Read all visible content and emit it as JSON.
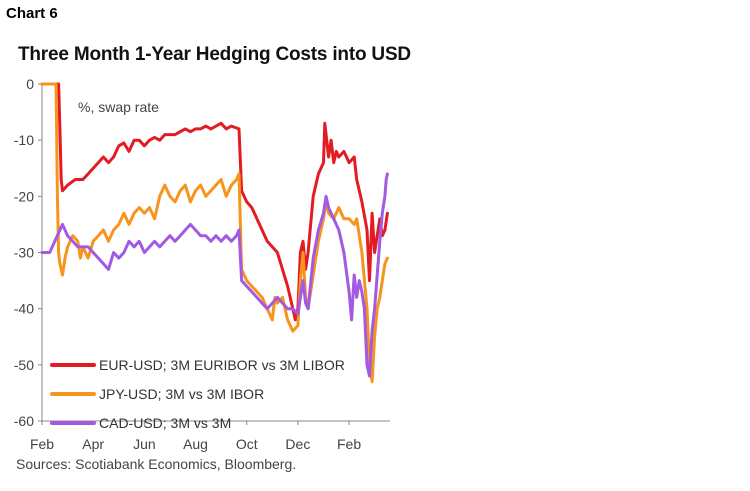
{
  "chart_label": "Chart 6",
  "source": "Sources: Scotiabank Economics, Bloomberg.",
  "chart_data": {
    "type": "line",
    "title": "Three Month 1-Year Hedging Costs into USD",
    "unit_label": "%, swap rate",
    "xlabel": "",
    "ylabel": "",
    "ylim": [
      -60,
      0
    ],
    "yticks": [
      0,
      -10,
      -20,
      -30,
      -40,
      -50,
      -60
    ],
    "xticks": [
      {
        "label": "Feb",
        "t": 0
      },
      {
        "label": "Apr",
        "t": 2
      },
      {
        "label": "Jun",
        "t": 4
      },
      {
        "label": "Aug",
        "t": 6
      },
      {
        "label": "Oct",
        "t": 8
      },
      {
        "label": "Dec",
        "t": 10
      },
      {
        "label": "Feb",
        "t": 12
      }
    ],
    "xlim": [
      0,
      13.6
    ],
    "grid": false,
    "legend_position": "bottom-left",
    "series": [
      {
        "name": "EUR-USD; 3M EURIBOR vs 3M LIBOR",
        "color": "#E31B23",
        "points": [
          [
            0,
            0
          ],
          [
            0.65,
            0
          ],
          [
            0.7,
            -8
          ],
          [
            0.75,
            -17
          ],
          [
            0.8,
            -19
          ],
          [
            1.0,
            -18
          ],
          [
            1.3,
            -17
          ],
          [
            1.6,
            -17
          ],
          [
            1.8,
            -16
          ],
          [
            2.0,
            -15
          ],
          [
            2.2,
            -14
          ],
          [
            2.4,
            -13
          ],
          [
            2.6,
            -14
          ],
          [
            2.8,
            -13
          ],
          [
            3.0,
            -11
          ],
          [
            3.2,
            -10.5
          ],
          [
            3.4,
            -12
          ],
          [
            3.6,
            -10
          ],
          [
            3.8,
            -10
          ],
          [
            4.0,
            -11
          ],
          [
            4.2,
            -10
          ],
          [
            4.4,
            -9.5
          ],
          [
            4.6,
            -10
          ],
          [
            4.8,
            -9
          ],
          [
            5.0,
            -9
          ],
          [
            5.2,
            -9
          ],
          [
            5.4,
            -8.5
          ],
          [
            5.6,
            -8
          ],
          [
            5.8,
            -8.5
          ],
          [
            6.0,
            -8
          ],
          [
            6.2,
            -8
          ],
          [
            6.4,
            -7.5
          ],
          [
            6.6,
            -8
          ],
          [
            6.8,
            -7.5
          ],
          [
            7.0,
            -7
          ],
          [
            7.2,
            -8
          ],
          [
            7.4,
            -7.5
          ],
          [
            7.7,
            -8
          ],
          [
            7.8,
            -19
          ],
          [
            8.0,
            -21
          ],
          [
            8.2,
            -22
          ],
          [
            8.4,
            -24
          ],
          [
            8.6,
            -26
          ],
          [
            8.8,
            -28
          ],
          [
            9.0,
            -29
          ],
          [
            9.2,
            -30
          ],
          [
            9.4,
            -33
          ],
          [
            9.6,
            -36
          ],
          [
            9.8,
            -40
          ],
          [
            9.9,
            -42
          ],
          [
            10.0,
            -40
          ],
          [
            10.1,
            -30
          ],
          [
            10.2,
            -28
          ],
          [
            10.3,
            -33
          ],
          [
            10.4,
            -30
          ],
          [
            10.6,
            -20
          ],
          [
            10.8,
            -16
          ],
          [
            11.0,
            -14
          ],
          [
            11.05,
            -7
          ],
          [
            11.2,
            -13
          ],
          [
            11.3,
            -10
          ],
          [
            11.4,
            -14
          ],
          [
            11.5,
            -12
          ],
          [
            11.6,
            -13
          ],
          [
            11.8,
            -12
          ],
          [
            12.0,
            -14
          ],
          [
            12.2,
            -13
          ],
          [
            12.3,
            -17
          ],
          [
            12.5,
            -21
          ],
          [
            12.7,
            -26
          ],
          [
            12.8,
            -35
          ],
          [
            12.9,
            -23
          ],
          [
            13.0,
            -30
          ],
          [
            13.1,
            -27
          ],
          [
            13.2,
            -24
          ],
          [
            13.3,
            -27
          ],
          [
            13.4,
            -26
          ],
          [
            13.5,
            -23
          ]
        ]
      },
      {
        "name": "JPY-USD; 3M vs 3M IBOR",
        "color": "#F7941D",
        "points": [
          [
            0,
            0
          ],
          [
            0.55,
            0
          ],
          [
            0.6,
            -20
          ],
          [
            0.65,
            -30
          ],
          [
            0.7,
            -32
          ],
          [
            0.8,
            -34
          ],
          [
            0.9,
            -31
          ],
          [
            1.0,
            -29
          ],
          [
            1.2,
            -27
          ],
          [
            1.4,
            -28
          ],
          [
            1.5,
            -31
          ],
          [
            1.6,
            -29
          ],
          [
            1.8,
            -31
          ],
          [
            2.0,
            -28
          ],
          [
            2.2,
            -27
          ],
          [
            2.4,
            -26
          ],
          [
            2.6,
            -28
          ],
          [
            2.8,
            -26
          ],
          [
            3.0,
            -25
          ],
          [
            3.2,
            -23
          ],
          [
            3.4,
            -25
          ],
          [
            3.6,
            -23
          ],
          [
            3.8,
            -22
          ],
          [
            4.0,
            -23
          ],
          [
            4.2,
            -22
          ],
          [
            4.4,
            -24
          ],
          [
            4.6,
            -20
          ],
          [
            4.8,
            -18
          ],
          [
            5.0,
            -20
          ],
          [
            5.2,
            -21
          ],
          [
            5.4,
            -19
          ],
          [
            5.6,
            -18
          ],
          [
            5.8,
            -21
          ],
          [
            6.0,
            -19
          ],
          [
            6.2,
            -18
          ],
          [
            6.4,
            -20
          ],
          [
            6.6,
            -19
          ],
          [
            6.8,
            -18
          ],
          [
            7.0,
            -17
          ],
          [
            7.2,
            -20
          ],
          [
            7.4,
            -18
          ],
          [
            7.6,
            -17
          ],
          [
            7.7,
            -16
          ],
          [
            7.8,
            -33
          ],
          [
            8.0,
            -35
          ],
          [
            8.2,
            -36
          ],
          [
            8.4,
            -37
          ],
          [
            8.6,
            -38
          ],
          [
            8.8,
            -40
          ],
          [
            9.0,
            -42
          ],
          [
            9.1,
            -38
          ],
          [
            9.2,
            -39
          ],
          [
            9.4,
            -38
          ],
          [
            9.6,
            -42
          ],
          [
            9.8,
            -44
          ],
          [
            10.0,
            -43
          ],
          [
            10.1,
            -35
          ],
          [
            10.2,
            -30
          ],
          [
            10.3,
            -38
          ],
          [
            10.4,
            -40
          ],
          [
            10.6,
            -34
          ],
          [
            10.8,
            -28
          ],
          [
            11.0,
            -24
          ],
          [
            11.1,
            -21
          ],
          [
            11.2,
            -23
          ],
          [
            11.4,
            -24
          ],
          [
            11.6,
            -22
          ],
          [
            11.8,
            -24
          ],
          [
            12.0,
            -24
          ],
          [
            12.2,
            -25
          ],
          [
            12.3,
            -24
          ],
          [
            12.5,
            -30
          ],
          [
            12.7,
            -40
          ],
          [
            12.8,
            -50
          ],
          [
            12.9,
            -53
          ],
          [
            13.0,
            -45
          ],
          [
            13.1,
            -40
          ],
          [
            13.2,
            -38
          ],
          [
            13.3,
            -35
          ],
          [
            13.4,
            -32
          ],
          [
            13.5,
            -31
          ]
        ]
      },
      {
        "name": "CAD-USD; 3M vs 3M",
        "color": "#A259E3",
        "points": [
          [
            0,
            -30
          ],
          [
            0.3,
            -30
          ],
          [
            0.5,
            -28
          ],
          [
            0.7,
            -26
          ],
          [
            0.8,
            -25
          ],
          [
            1.0,
            -27
          ],
          [
            1.2,
            -28
          ],
          [
            1.4,
            -29
          ],
          [
            1.6,
            -29
          ],
          [
            1.8,
            -29
          ],
          [
            2.0,
            -30
          ],
          [
            2.2,
            -31
          ],
          [
            2.4,
            -32
          ],
          [
            2.6,
            -33
          ],
          [
            2.8,
            -30
          ],
          [
            3.0,
            -31
          ],
          [
            3.2,
            -30
          ],
          [
            3.4,
            -28
          ],
          [
            3.6,
            -29
          ],
          [
            3.8,
            -28
          ],
          [
            4.0,
            -30
          ],
          [
            4.2,
            -29
          ],
          [
            4.4,
            -28
          ],
          [
            4.6,
            -29
          ],
          [
            4.8,
            -28
          ],
          [
            5.0,
            -27
          ],
          [
            5.2,
            -28
          ],
          [
            5.4,
            -27
          ],
          [
            5.6,
            -26
          ],
          [
            5.8,
            -25
          ],
          [
            6.0,
            -26
          ],
          [
            6.2,
            -27
          ],
          [
            6.4,
            -27
          ],
          [
            6.6,
            -28
          ],
          [
            6.8,
            -27
          ],
          [
            7.0,
            -28
          ],
          [
            7.2,
            -27
          ],
          [
            7.4,
            -28
          ],
          [
            7.6,
            -27
          ],
          [
            7.7,
            -26
          ],
          [
            7.8,
            -35
          ],
          [
            8.0,
            -36
          ],
          [
            8.2,
            -37
          ],
          [
            8.4,
            -38
          ],
          [
            8.6,
            -39
          ],
          [
            8.8,
            -40
          ],
          [
            9.0,
            -39
          ],
          [
            9.2,
            -38
          ],
          [
            9.4,
            -39
          ],
          [
            9.6,
            -40
          ],
          [
            9.8,
            -40
          ],
          [
            10.0,
            -41
          ],
          [
            10.1,
            -38
          ],
          [
            10.2,
            -35
          ],
          [
            10.3,
            -39
          ],
          [
            10.4,
            -40
          ],
          [
            10.6,
            -31
          ],
          [
            10.8,
            -26
          ],
          [
            11.0,
            -23
          ],
          [
            11.1,
            -20
          ],
          [
            11.2,
            -22
          ],
          [
            11.4,
            -24
          ],
          [
            11.6,
            -26
          ],
          [
            11.8,
            -30
          ],
          [
            12.0,
            -37
          ],
          [
            12.1,
            -42
          ],
          [
            12.2,
            -34
          ],
          [
            12.3,
            -38
          ],
          [
            12.4,
            -35
          ],
          [
            12.5,
            -37
          ],
          [
            12.6,
            -40
          ],
          [
            12.7,
            -50
          ],
          [
            12.8,
            -52
          ],
          [
            12.9,
            -44
          ],
          [
            13.0,
            -40
          ],
          [
            13.1,
            -34
          ],
          [
            13.2,
            -28
          ],
          [
            13.3,
            -23
          ],
          [
            13.4,
            -20
          ],
          [
            13.45,
            -17
          ],
          [
            13.5,
            -16
          ]
        ]
      }
    ]
  }
}
